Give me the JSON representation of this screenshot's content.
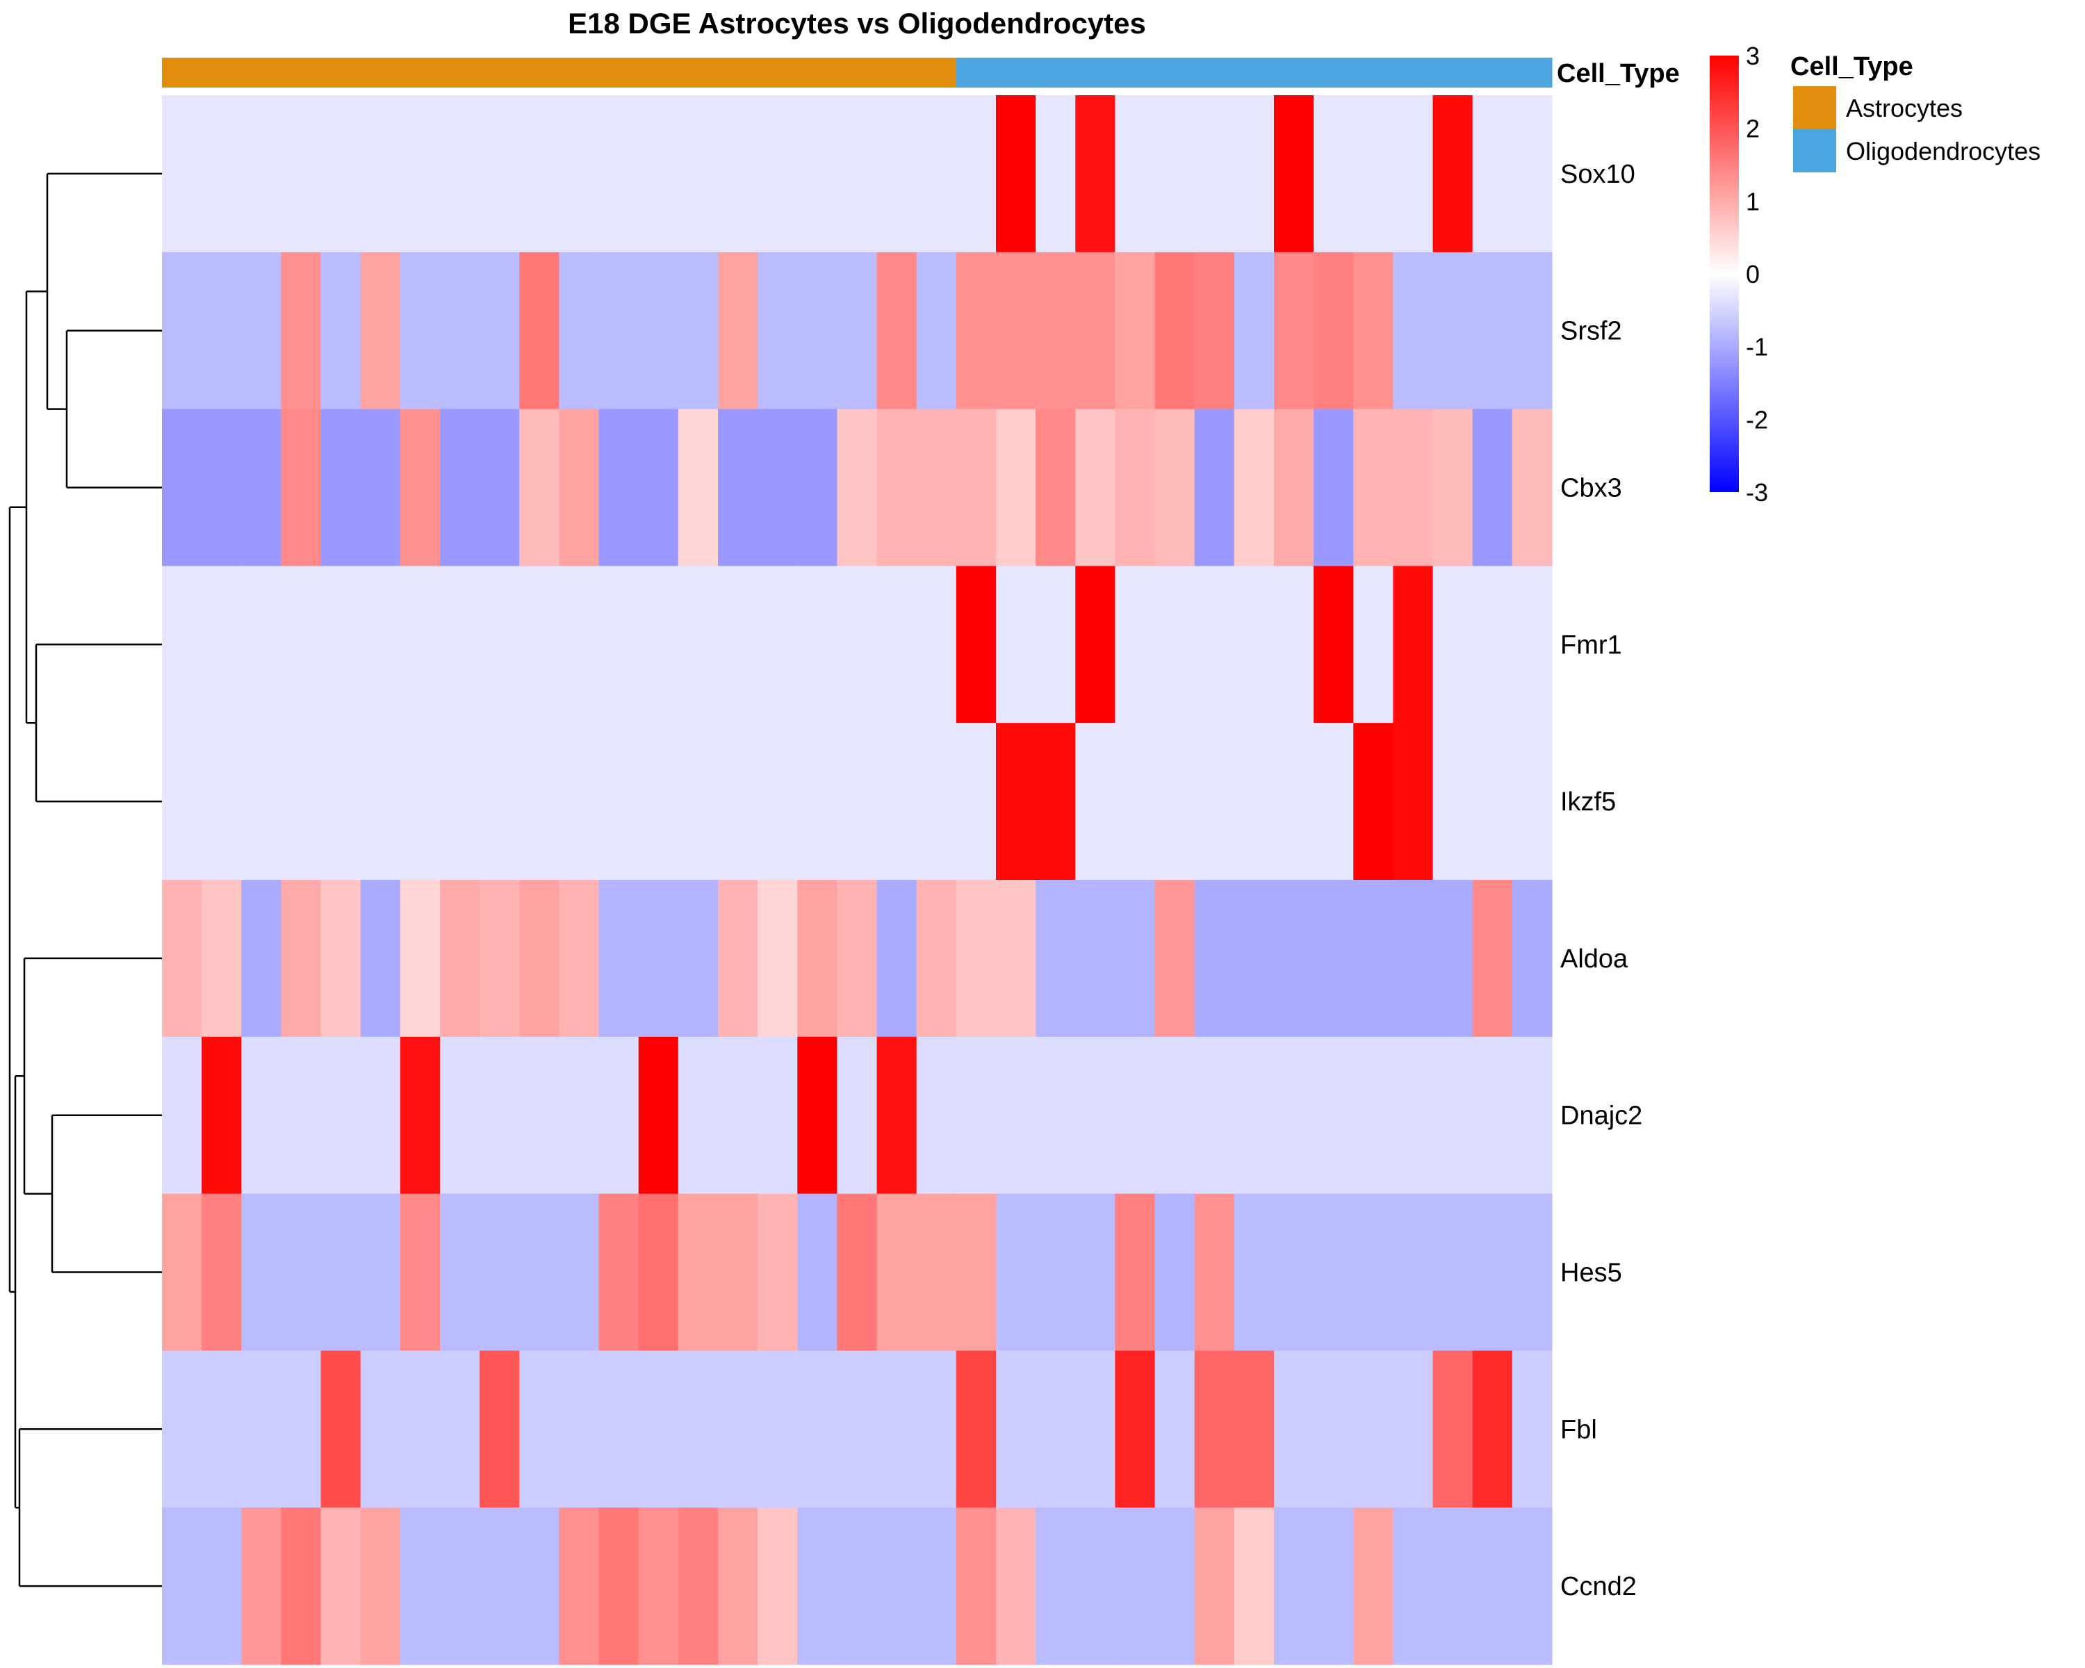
{
  "chart_data": {
    "type": "heatmap",
    "title": "E18 DGE Astrocytes vs Oligodendrocytes",
    "rows": [
      "Sox10",
      "Srsf2",
      "Cbx3",
      "Fmr1",
      "Ikzf5",
      "Aldoa",
      "Dnajc2",
      "Hes5",
      "Fbl",
      "Ccnd2"
    ],
    "columns_count": 35,
    "annotation": {
      "name": "Cell_Type",
      "values": [
        "Astrocytes",
        "Astrocytes",
        "Astrocytes",
        "Astrocytes",
        "Astrocytes",
        "Astrocytes",
        "Astrocytes",
        "Astrocytes",
        "Astrocytes",
        "Astrocytes",
        "Astrocytes",
        "Astrocytes",
        "Astrocytes",
        "Astrocytes",
        "Astrocytes",
        "Astrocytes",
        "Astrocytes",
        "Astrocytes",
        "Astrocytes",
        "Astrocytes",
        "Oligodendrocytes",
        "Oligodendrocytes",
        "Oligodendrocytes",
        "Oligodendrocytes",
        "Oligodendrocytes",
        "Oligodendrocytes",
        "Oligodendrocytes",
        "Oligodendrocytes",
        "Oligodendrocytes",
        "Oligodendrocytes",
        "Oligodendrocytes",
        "Oligodendrocytes",
        "Oligodendrocytes",
        "Oligodendrocytes",
        "Oligodendrocytes"
      ],
      "colors": {
        "Astrocytes": "#E08E0B",
        "Oligodendrocytes": "#4BA6E0"
      },
      "legend": [
        {
          "name": "Astrocytes",
          "color": "#E08E0B"
        },
        {
          "name": "Oligodendrocytes",
          "color": "#4BA6E0"
        }
      ]
    },
    "values": [
      [
        -0.3,
        -0.3,
        -0.3,
        -0.3,
        -0.3,
        -0.3,
        -0.3,
        -0.3,
        -0.3,
        -0.3,
        -0.3,
        -0.3,
        -0.3,
        -0.3,
        -0.3,
        -0.3,
        -0.3,
        -0.3,
        -0.3,
        -0.3,
        -0.3,
        3.0,
        -0.3,
        2.8,
        -0.3,
        -0.3,
        -0.3,
        -0.3,
        3.1,
        -0.3,
        -0.3,
        -0.3,
        2.9,
        -0.3,
        -0.3
      ],
      [
        -0.8,
        -0.8,
        -0.8,
        1.3,
        -0.8,
        1.1,
        -0.8,
        -0.8,
        -0.8,
        1.6,
        -0.8,
        -0.8,
        -0.8,
        -0.8,
        1.1,
        -0.8,
        -0.8,
        -0.8,
        1.4,
        -0.8,
        1.3,
        1.3,
        1.3,
        1.3,
        1.1,
        1.6,
        1.5,
        -0.8,
        1.4,
        1.5,
        1.3,
        -0.8,
        -0.8,
        -0.8,
        -0.8
      ],
      [
        -1.2,
        -1.2,
        -1.2,
        1.4,
        -1.2,
        -1.2,
        1.3,
        -1.2,
        -1.2,
        0.8,
        1.1,
        -1.2,
        -1.2,
        0.5,
        -1.2,
        -1.2,
        -1.2,
        0.7,
        0.9,
        0.9,
        0.9,
        0.6,
        1.4,
        0.7,
        0.9,
        0.8,
        -1.2,
        0.6,
        1.0,
        -1.2,
        0.9,
        0.9,
        0.8,
        -1.2,
        0.8
      ],
      [
        -0.3,
        -0.3,
        -0.3,
        -0.3,
        -0.3,
        -0.3,
        -0.3,
        -0.3,
        -0.3,
        -0.3,
        -0.3,
        -0.3,
        -0.3,
        -0.3,
        -0.3,
        -0.3,
        -0.3,
        -0.3,
        -0.3,
        -0.3,
        3.0,
        -0.3,
        -0.3,
        3.0,
        -0.3,
        -0.3,
        -0.3,
        -0.3,
        -0.3,
        3.0,
        -0.3,
        2.9,
        -0.3,
        -0.3,
        -0.3
      ],
      [
        -0.3,
        -0.3,
        -0.3,
        -0.3,
        -0.3,
        -0.3,
        -0.3,
        -0.3,
        -0.3,
        -0.3,
        -0.3,
        -0.3,
        -0.3,
        -0.3,
        -0.3,
        -0.3,
        -0.3,
        -0.3,
        -0.3,
        -0.3,
        -0.3,
        2.9,
        2.9,
        -0.3,
        -0.3,
        -0.3,
        -0.3,
        -0.3,
        -0.3,
        -0.3,
        3.1,
        2.9,
        -0.3,
        -0.3,
        -0.3
      ],
      [
        0.9,
        0.7,
        -1.0,
        1.0,
        0.7,
        -1.0,
        0.5,
        1.0,
        0.9,
        1.1,
        0.9,
        -0.9,
        -0.9,
        -0.9,
        0.9,
        0.5,
        1.1,
        0.9,
        -1.0,
        0.9,
        0.7,
        0.7,
        -0.9,
        -0.9,
        -0.9,
        1.2,
        -1.0,
        -1.0,
        -1.0,
        -1.0,
        -1.0,
        -1.0,
        -1.0,
        1.4,
        -1.0
      ],
      [
        -0.4,
        2.9,
        -0.4,
        -0.4,
        -0.4,
        -0.4,
        2.8,
        -0.4,
        -0.4,
        -0.4,
        -0.4,
        -0.4,
        3.0,
        -0.4,
        -0.4,
        -0.4,
        3.0,
        -0.4,
        2.8,
        -0.4,
        -0.4,
        -0.4,
        -0.4,
        -0.4,
        -0.4,
        -0.4,
        -0.4,
        -0.4,
        -0.4,
        -0.4,
        -0.4,
        -0.4,
        -0.4,
        -0.4,
        -0.4
      ],
      [
        1.1,
        1.5,
        -0.8,
        -0.8,
        -0.8,
        -0.8,
        1.4,
        -0.8,
        -0.8,
        -0.8,
        -0.8,
        1.5,
        1.7,
        1.1,
        1.1,
        0.9,
        -0.9,
        1.6,
        1.1,
        1.1,
        1.1,
        -0.8,
        -0.8,
        -0.8,
        1.5,
        -0.9,
        1.3,
        -0.8,
        -0.8,
        -0.8,
        -0.8,
        -0.8,
        -0.8,
        -0.8,
        -0.8
      ],
      [
        -0.6,
        -0.6,
        -0.6,
        -0.6,
        2.1,
        -0.6,
        -0.6,
        -0.6,
        2.0,
        -0.6,
        -0.6,
        -0.6,
        -0.6,
        -0.6,
        -0.6,
        -0.6,
        -0.6,
        -0.6,
        -0.6,
        -0.6,
        2.2,
        -0.6,
        -0.6,
        -0.6,
        2.6,
        -0.6,
        1.8,
        1.8,
        -0.6,
        -0.6,
        -0.6,
        -0.6,
        1.8,
        2.5,
        -0.6
      ],
      [
        -0.8,
        -0.8,
        1.2,
        1.6,
        0.9,
        1.1,
        -0.8,
        -0.8,
        -0.8,
        -0.8,
        1.3,
        1.6,
        1.3,
        1.5,
        1.1,
        0.7,
        -0.8,
        -0.8,
        -0.8,
        -0.8,
        1.3,
        0.9,
        -0.8,
        -0.8,
        -0.8,
        -0.8,
        1.1,
        0.6,
        -0.8,
        -0.8,
        1.1,
        -0.8,
        -0.8,
        -0.8,
        -0.8
      ]
    ],
    "color_scale": {
      "min": -3,
      "max": 3,
      "stops": [
        {
          "value": -3,
          "color": "#0000FF"
        },
        {
          "value": 0,
          "color": "#FFFFFF"
        },
        {
          "value": 3,
          "color": "#FF0000"
        }
      ],
      "ticks": [
        "3",
        "2",
        "1",
        "0",
        "-1",
        "-2",
        "-3"
      ]
    },
    "row_dendrogram": true,
    "grid": false
  }
}
